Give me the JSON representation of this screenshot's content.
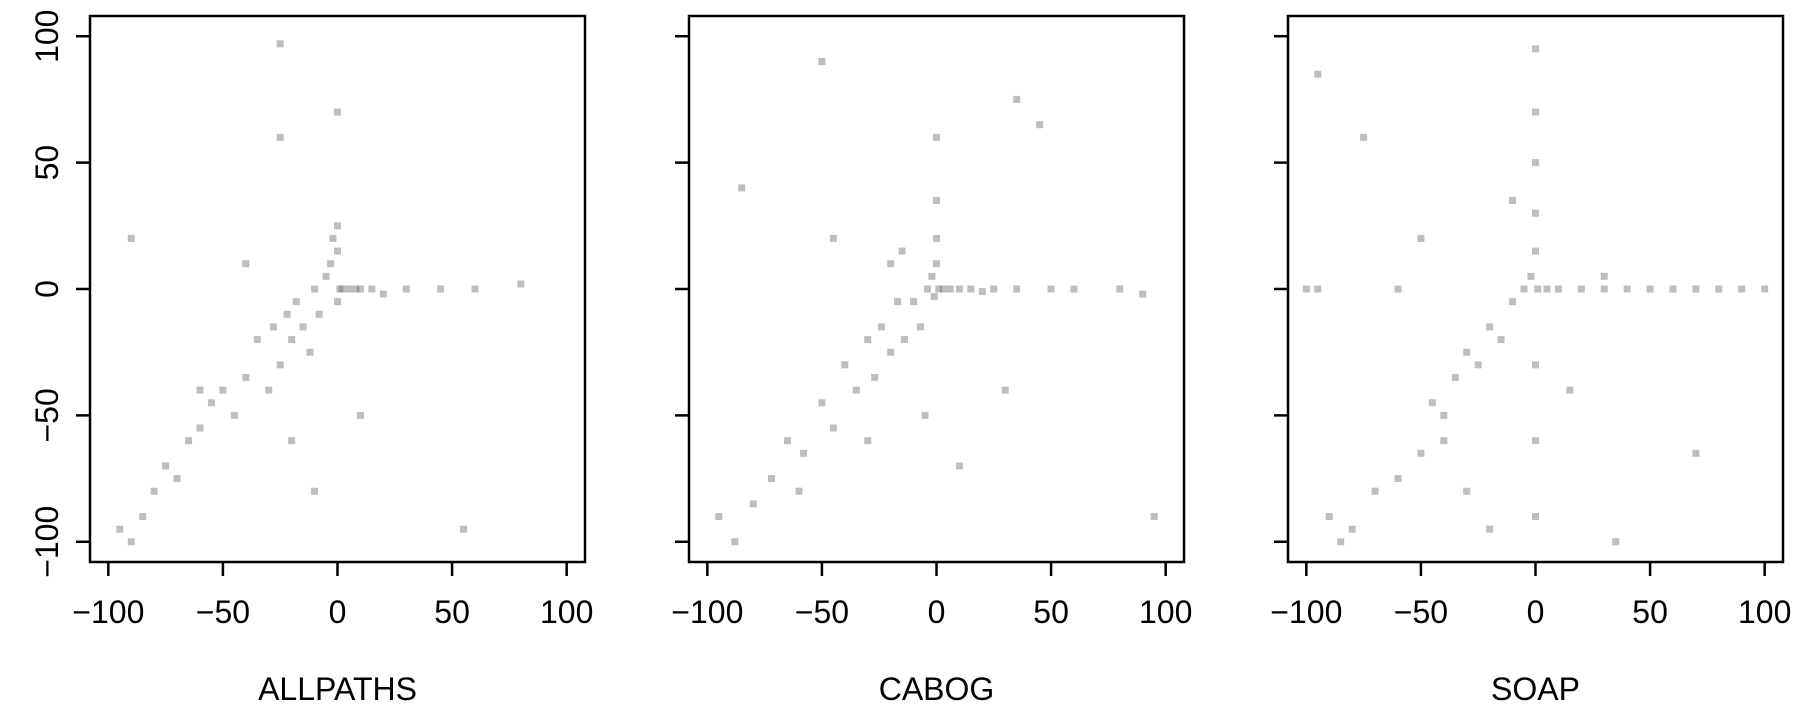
{
  "chart_data": [
    {
      "type": "scatter",
      "xlabel": "ALLPATHS",
      "color": "#6e6e6e",
      "x": [
        -95,
        -90,
        -85,
        -80,
        -75,
        -70,
        -65,
        -60,
        -55,
        -50,
        -45,
        -40,
        -35,
        -30,
        -28,
        -25,
        -22,
        -20,
        -18,
        -15,
        -12,
        -10,
        -8,
        -5,
        -3,
        -2,
        0,
        0,
        1,
        0,
        2,
        5,
        8,
        10,
        15,
        20,
        30,
        45,
        60,
        80,
        -40,
        -25,
        -20,
        -60,
        -10,
        55,
        -90,
        -25,
        0,
        10
      ],
      "y": [
        -95,
        -100,
        -90,
        -80,
        -70,
        -75,
        -60,
        -55,
        -45,
        -40,
        -50,
        -35,
        -20,
        -40,
        -15,
        -30,
        -10,
        -20,
        -5,
        -15,
        -25,
        0,
        -10,
        5,
        10,
        20,
        25,
        15,
        0,
        -5,
        0,
        0,
        0,
        0,
        0,
        -2,
        0,
        0,
        0,
        2,
        10,
        60,
        -60,
        -40,
        -80,
        -95,
        20,
        97,
        70,
        -50
      ],
      "xlim": [
        -108,
        108
      ],
      "ylim": [
        -108,
        108
      ],
      "xticks": [
        {
          "value": -100,
          "label": "−100"
        },
        {
          "value": -50,
          "label": "−50"
        },
        0,
        50,
        100
      ],
      "yticks": [
        {
          "value": -100,
          "label": "−100"
        },
        {
          "value": -50,
          "label": "−50"
        },
        0,
        50,
        100
      ],
      "show_ytick_labels": true
    },
    {
      "type": "scatter",
      "xlabel": "CABOG",
      "color": "#6e6e6e",
      "x": [
        -95,
        -88,
        -80,
        -72,
        -65,
        -58,
        -50,
        -45,
        -40,
        -35,
        -30,
        -27,
        -24,
        -20,
        -17,
        -14,
        -10,
        -7,
        -4,
        -2,
        0,
        0,
        0,
        1,
        -1,
        3,
        6,
        10,
        15,
        20,
        25,
        35,
        50,
        60,
        80,
        90,
        -20,
        -45,
        -60,
        30,
        -5,
        45,
        -85,
        -30,
        10,
        0,
        -15,
        35,
        95,
        -50
      ],
      "y": [
        -90,
        -100,
        -85,
        -75,
        -60,
        -65,
        -45,
        -55,
        -30,
        -40,
        -20,
        -35,
        -15,
        -25,
        -5,
        -20,
        -5,
        -15,
        0,
        5,
        10,
        20,
        35,
        0,
        -3,
        0,
        0,
        0,
        0,
        -1,
        0,
        0,
        0,
        0,
        0,
        -2,
        10,
        20,
        -80,
        -40,
        -50,
        65,
        40,
        -60,
        -70,
        60,
        15,
        75,
        -90,
        90
      ],
      "xlim": [
        -108,
        108
      ],
      "ylim": [
        -108,
        108
      ],
      "xticks": [
        {
          "value": -100,
          "label": "−100"
        },
        {
          "value": -50,
          "label": "−50"
        },
        0,
        50,
        100
      ],
      "yticks": [
        -100,
        -50,
        0,
        50,
        100
      ],
      "show_ytick_labels": false
    },
    {
      "type": "scatter",
      "xlabel": "SOAP",
      "color": "#6e6e6e",
      "x": [
        -100,
        -95,
        -90,
        -80,
        -70,
        -60,
        -50,
        -45,
        -40,
        -35,
        -30,
        -25,
        -20,
        -15,
        -10,
        -5,
        -2,
        0,
        0,
        0,
        0,
        0,
        0,
        0,
        1,
        5,
        10,
        20,
        30,
        40,
        50,
        60,
        70,
        80,
        90,
        100,
        -85,
        -75,
        -50,
        -40,
        -30,
        -20,
        35,
        15,
        -60,
        -95,
        30,
        0,
        70,
        -10
      ],
      "y": [
        0,
        0,
        -90,
        -95,
        -80,
        -75,
        -65,
        -45,
        -50,
        -35,
        -25,
        -30,
        -15,
        -20,
        -5,
        0,
        5,
        15,
        30,
        50,
        70,
        -30,
        -60,
        -90,
        0,
        0,
        0,
        0,
        0,
        0,
        0,
        0,
        0,
        0,
        0,
        0,
        -100,
        60,
        20,
        -60,
        -80,
        -95,
        -100,
        -40,
        0,
        85,
        5,
        95,
        -65,
        35
      ],
      "xlim": [
        -108,
        108
      ],
      "ylim": [
        -108,
        108
      ],
      "xticks": [
        {
          "value": -100,
          "label": "−100"
        },
        {
          "value": -50,
          "label": "−50"
        },
        0,
        50,
        100
      ],
      "yticks": [
        -100,
        -50,
        0,
        50,
        100
      ],
      "show_ytick_labels": false
    }
  ]
}
